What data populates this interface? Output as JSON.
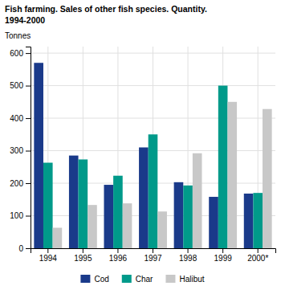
{
  "chart_data": {
    "type": "bar",
    "title": "Fish farming. Sales of other fish species. Quantity.",
    "subtitle": "1994-2000",
    "ylabel": "Tonnes",
    "categories": [
      "1994",
      "1995",
      "1996",
      "1997",
      "1998",
      "1999",
      "2000*"
    ],
    "series": [
      {
        "name": "Cod",
        "color": "#1a3a8a",
        "values": [
          570,
          285,
          195,
          310,
          203,
          158,
          168
        ]
      },
      {
        "name": "Char",
        "color": "#009a8a",
        "values": [
          263,
          273,
          223,
          350,
          193,
          500,
          170
        ]
      },
      {
        "name": "Halibut",
        "color": "#c8c8c8",
        "values": [
          63,
          133,
          138,
          113,
          292,
          450,
          428
        ]
      }
    ],
    "ylim": [
      0,
      620
    ],
    "yticks": [
      0,
      100,
      200,
      300,
      400,
      500,
      600
    ],
    "grid": true,
    "legend": "bottom"
  }
}
